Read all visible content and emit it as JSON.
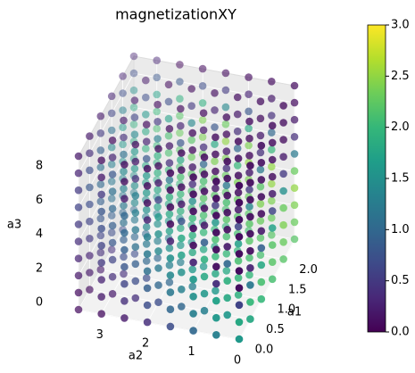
{
  "chart_data": {
    "type": "scatter3d",
    "title": "magnetizationXY",
    "xlabel": "a1",
    "ylabel": "a2",
    "zlabel": "a3",
    "x": [
      0,
      0.5,
      1,
      1.5,
      2,
      2.5
    ],
    "y": [
      0,
      0.5,
      1,
      1.5,
      2,
      2.5,
      3,
      3.5
    ],
    "z": [
      0,
      1,
      2,
      3,
      4,
      5,
      6,
      7,
      8,
      9
    ],
    "xlim": [
      0,
      2.5
    ],
    "ylim": [
      0,
      3.5
    ],
    "zlim": [
      0,
      9
    ],
    "xticks": [
      {
        "value": 0,
        "label": "0.0"
      },
      {
        "value": 0.5,
        "label": "0.5"
      },
      {
        "value": 1,
        "label": "1.0"
      },
      {
        "value": 1.5,
        "label": "1.5"
      },
      {
        "value": 2,
        "label": "2.0"
      }
    ],
    "yticks": [
      0,
      1,
      2,
      3
    ],
    "zticks": [
      0,
      2,
      4,
      6,
      8
    ],
    "colormap": "viridis",
    "clim": [
      0,
      3
    ],
    "cticks": [
      {
        "value": 0,
        "label": "0.0"
      },
      {
        "value": 0.5,
        "label": "0.5"
      },
      {
        "value": 1,
        "label": "1.0"
      },
      {
        "value": 1.5,
        "label": "1.5"
      },
      {
        "value": 2,
        "label": "2.0"
      },
      {
        "value": 2.5,
        "label": "2.5"
      },
      {
        "value": 3,
        "label": "3.0"
      }
    ],
    "values": [
      [
        [
          1.6,
          1.8,
          2.0,
          2.1,
          2.2,
          2.2
        ],
        [
          1.3,
          1.6,
          1.9,
          2.0,
          2.1,
          2.2
        ],
        [
          1.0,
          1.3,
          1.6,
          1.8,
          2.0,
          2.1
        ],
        [
          0.7,
          1.0,
          1.3,
          1.6,
          1.8,
          2.0
        ],
        [
          0.4,
          0.7,
          1.0,
          1.3,
          1.6,
          1.8
        ],
        [
          0.2,
          0.4,
          0.7,
          1.0,
          1.3,
          1.6
        ],
        [
          0.1,
          0.2,
          0.4,
          0.7,
          1.0,
          1.3
        ],
        [
          0.1,
          0.1,
          0.2,
          0.4,
          0.7,
          1.0
        ]
      ],
      [
        [
          1.8,
          2.0,
          2.1,
          2.2,
          2.3,
          2.3
        ],
        [
          1.6,
          1.8,
          2.0,
          2.1,
          2.2,
          2.3
        ],
        [
          1.3,
          1.6,
          1.8,
          2.0,
          2.1,
          2.2
        ],
        [
          1.0,
          1.3,
          1.6,
          1.8,
          2.0,
          2.1
        ],
        [
          0.7,
          1.0,
          1.3,
          1.6,
          1.8,
          2.0
        ],
        [
          0.4,
          0.7,
          1.0,
          1.3,
          1.6,
          1.8
        ],
        [
          0.2,
          0.4,
          0.7,
          1.0,
          1.3,
          1.6
        ],
        [
          0.1,
          0.2,
          0.4,
          0.7,
          1.0,
          1.3
        ]
      ],
      [
        [
          0.6,
          1.2,
          1.8,
          2.2,
          2.4,
          2.4
        ],
        [
          1.7,
          1.9,
          2.1,
          2.2,
          2.3,
          2.4
        ],
        [
          1.5,
          1.8,
          2.0,
          2.1,
          2.2,
          2.3
        ],
        [
          1.2,
          1.5,
          1.8,
          2.0,
          2.1,
          2.2
        ],
        [
          0.9,
          1.2,
          1.5,
          1.8,
          2.0,
          2.1
        ],
        [
          0.6,
          0.9,
          1.2,
          1.5,
          1.8,
          2.0
        ],
        [
          0.3,
          0.6,
          0.9,
          1.2,
          1.5,
          1.8
        ],
        [
          0.2,
          0.3,
          0.6,
          0.9,
          1.2,
          1.5
        ]
      ],
      [
        [
          0.1,
          0.3,
          0.9,
          1.7,
          2.3,
          2.5
        ],
        [
          0.4,
          1.0,
          1.7,
          2.2,
          2.4,
          2.5
        ],
        [
          1.6,
          1.9,
          2.1,
          2.2,
          2.3,
          2.4
        ],
        [
          1.4,
          1.7,
          1.9,
          2.1,
          2.2,
          2.3
        ],
        [
          1.1,
          1.4,
          1.7,
          1.9,
          2.1,
          2.2
        ],
        [
          0.8,
          1.1,
          1.4,
          1.7,
          1.9,
          2.1
        ],
        [
          0.5,
          0.8,
          1.1,
          1.4,
          1.7,
          1.9
        ],
        [
          0.3,
          0.5,
          0.8,
          1.1,
          1.4,
          1.7
        ]
      ],
      [
        [
          0.1,
          0.1,
          0.2,
          0.6,
          1.5,
          2.3
        ],
        [
          0.1,
          0.2,
          0.6,
          1.4,
          2.2,
          2.5
        ],
        [
          0.3,
          0.9,
          1.6,
          2.1,
          2.4,
          2.5
        ],
        [
          1.5,
          1.8,
          2.0,
          2.2,
          2.3,
          2.4
        ],
        [
          1.2,
          1.5,
          1.8,
          2.0,
          2.2,
          2.3
        ],
        [
          0.9,
          1.2,
          1.5,
          1.8,
          2.0,
          2.2
        ],
        [
          0.6,
          0.9,
          1.2,
          1.5,
          1.8,
          2.0
        ],
        [
          0.4,
          0.6,
          0.9,
          1.2,
          1.5,
          1.8
        ]
      ],
      [
        [
          0.1,
          0.1,
          0.1,
          0.2,
          0.5,
          1.2
        ],
        [
          0.1,
          0.1,
          0.2,
          0.5,
          1.2,
          2.0
        ],
        [
          0.1,
          0.2,
          0.5,
          1.2,
          2.0,
          2.4
        ],
        [
          0.3,
          0.8,
          1.5,
          2.1,
          2.4,
          2.5
        ],
        [
          1.3,
          1.6,
          1.9,
          2.1,
          2.3,
          2.4
        ],
        [
          1.0,
          1.3,
          1.6,
          1.9,
          2.1,
          2.3
        ],
        [
          0.7,
          1.0,
          1.3,
          1.6,
          1.9,
          2.1
        ],
        [
          0.5,
          0.7,
          1.0,
          1.3,
          1.6,
          1.9
        ]
      ],
      [
        [
          0.1,
          0.1,
          0.1,
          0.1,
          0.2,
          0.4
        ],
        [
          0.1,
          0.1,
          0.1,
          0.2,
          0.4,
          1.0
        ],
        [
          0.1,
          0.1,
          0.2,
          0.4,
          1.0,
          1.8
        ],
        [
          0.1,
          0.2,
          0.4,
          1.0,
          1.8,
          2.3
        ],
        [
          0.3,
          0.6,
          1.2,
          1.8,
          2.2,
          2.4
        ],
        [
          1.0,
          1.3,
          1.6,
          1.9,
          2.1,
          2.2
        ],
        [
          0.8,
          1.1,
          1.4,
          1.6,
          1.8,
          2.0
        ],
        [
          0.6,
          0.8,
          1.1,
          1.4,
          1.6,
          1.8
        ]
      ],
      [
        [
          0.1,
          0.1,
          0.1,
          0.1,
          0.1,
          0.2
        ],
        [
          0.1,
          0.1,
          0.1,
          0.1,
          0.2,
          0.4
        ],
        [
          0.1,
          0.1,
          0.1,
          0.2,
          0.4,
          0.8
        ],
        [
          0.1,
          0.1,
          0.2,
          0.4,
          0.8,
          1.4
        ],
        [
          0.1,
          0.2,
          0.4,
          0.8,
          1.4,
          1.9
        ],
        [
          0.2,
          0.4,
          0.8,
          1.3,
          1.7,
          1.9
        ],
        [
          0.5,
          0.8,
          1.1,
          1.4,
          1.6,
          1.7
        ],
        [
          0.5,
          0.7,
          0.9,
          1.1,
          1.3,
          1.5
        ]
      ],
      [
        [
          0.1,
          0.1,
          0.1,
          0.1,
          0.1,
          0.1
        ],
        [
          0.1,
          0.1,
          0.1,
          0.1,
          0.1,
          0.2
        ],
        [
          0.1,
          0.1,
          0.1,
          0.1,
          0.2,
          0.3
        ],
        [
          0.1,
          0.1,
          0.1,
          0.2,
          0.3,
          0.5
        ],
        [
          0.1,
          0.1,
          0.2,
          0.3,
          0.5,
          0.7
        ],
        [
          0.1,
          0.2,
          0.3,
          0.5,
          0.7,
          0.8
        ],
        [
          0.2,
          0.3,
          0.4,
          0.6,
          0.7,
          0.8
        ],
        [
          0.3,
          0.4,
          0.5,
          0.6,
          0.7,
          0.7
        ]
      ],
      [
        [
          0.1,
          0.1,
          0.1,
          0.1,
          0.1,
          0.1
        ],
        [
          0.1,
          0.1,
          0.1,
          0.1,
          0.1,
          0.1
        ],
        [
          0.1,
          0.1,
          0.1,
          0.1,
          0.1,
          0.1
        ],
        [
          0.1,
          0.1,
          0.1,
          0.1,
          0.1,
          0.1
        ],
        [
          0.1,
          0.1,
          0.1,
          0.1,
          0.1,
          0.1
        ],
        [
          0.1,
          0.1,
          0.1,
          0.1,
          0.1,
          0.1
        ],
        [
          0.1,
          0.1,
          0.2,
          0.2,
          0.2,
          0.3
        ],
        [
          0.2,
          0.2,
          0.2,
          0.3,
          0.3,
          0.3
        ]
      ]
    ]
  }
}
